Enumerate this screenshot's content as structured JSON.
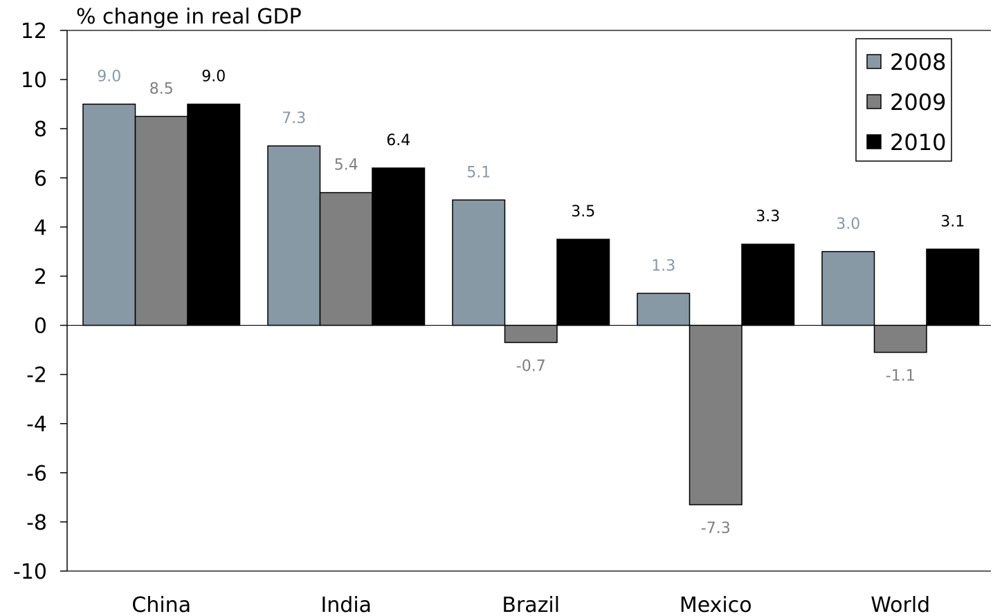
{
  "chart_data": {
    "type": "bar",
    "ylabel": "% change in real GDP",
    "ylim": [
      -10,
      12
    ],
    "yticks": [
      12,
      10,
      8,
      6,
      4,
      2,
      0,
      -2,
      -4,
      -6,
      -8,
      -10
    ],
    "categories": [
      "China",
      "India",
      "Brazil",
      "Mexico",
      "World"
    ],
    "series": [
      {
        "name": "2008",
        "color": "#8899a6",
        "label_color": "#8899a6",
        "values": [
          9.0,
          7.3,
          5.1,
          1.3,
          3.0
        ]
      },
      {
        "name": "2009",
        "color": "#808080",
        "label_color": "#808080",
        "values": [
          8.5,
          5.4,
          -0.7,
          -7.3,
          -1.1
        ]
      },
      {
        "name": "2010",
        "color": "#000000",
        "label_color": "#000000",
        "values": [
          9.0,
          6.4,
          3.5,
          3.3,
          3.1
        ]
      }
    ],
    "data_labels": [
      [
        "9.0",
        "7.3",
        "5.1",
        "1.3",
        "3.0"
      ],
      [
        "8.5",
        "5.4",
        "-0.7",
        "-7.3",
        "-1.1"
      ],
      [
        "9.0",
        "6.4",
        "3.5",
        "3.3",
        "3.1"
      ]
    ],
    "legend_position": "top-right",
    "grid": false
  }
}
